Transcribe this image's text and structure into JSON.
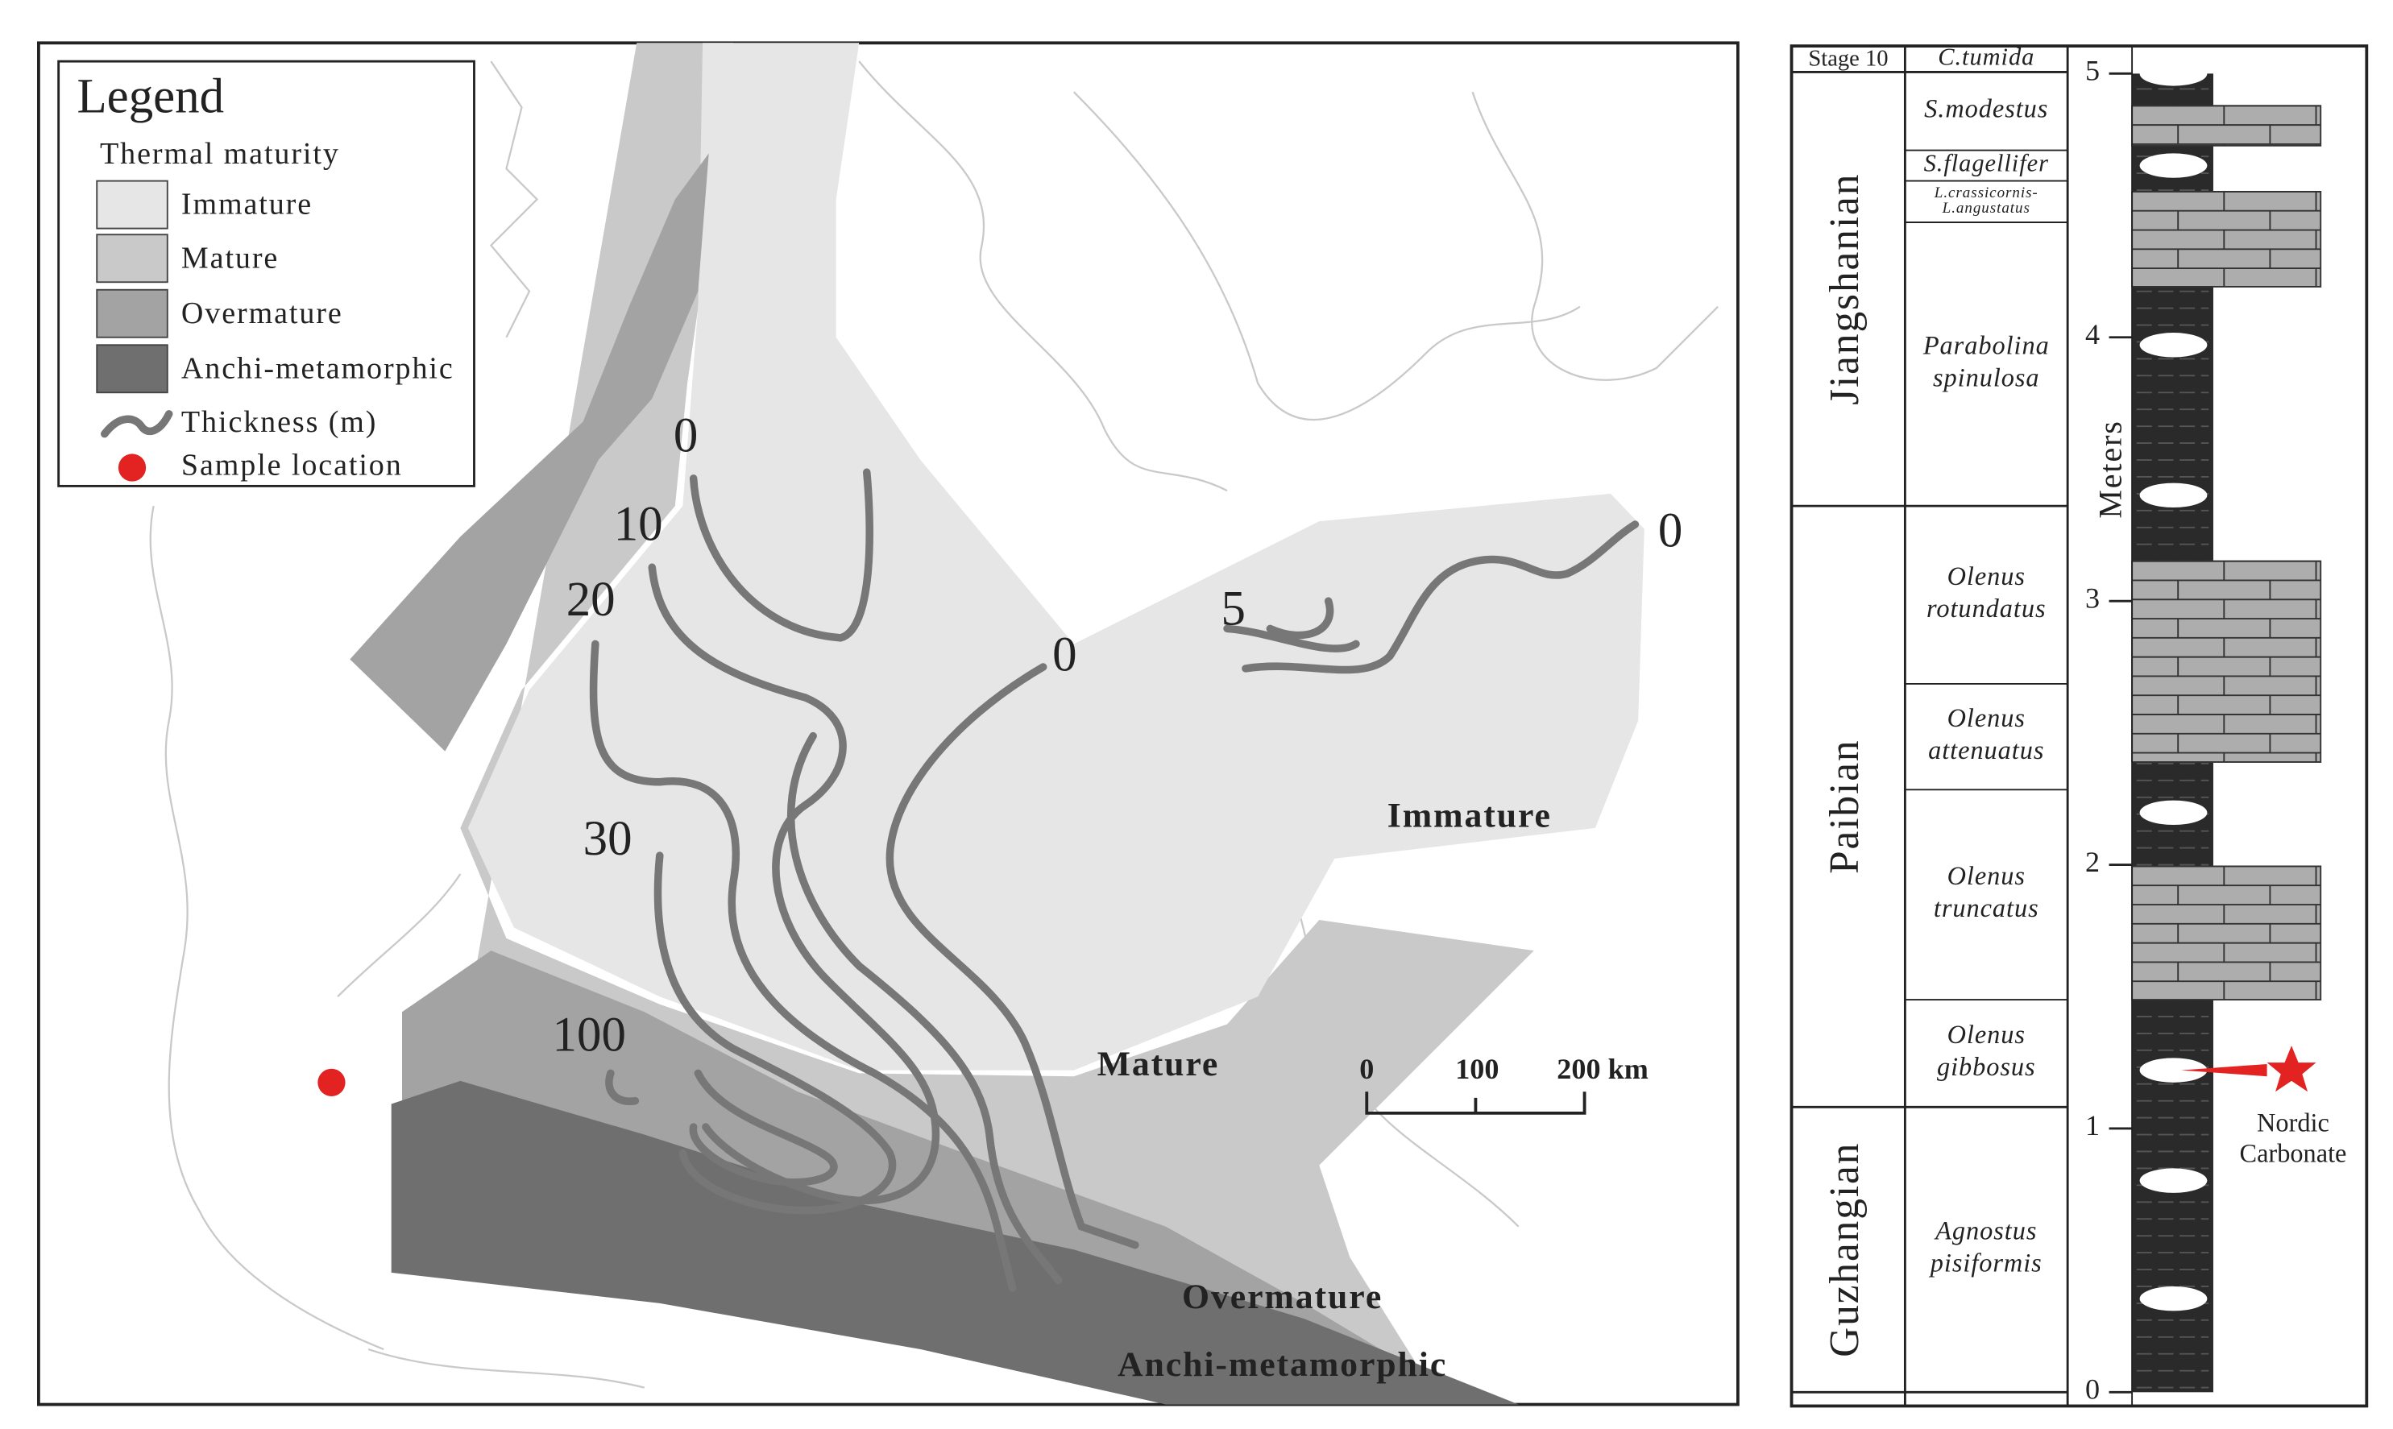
{
  "legend": {
    "title": "Legend",
    "subtitle": "Thermal maturity",
    "items": [
      "Immature",
      "Mature",
      "Overmature",
      "Anchi-metamorphic",
      "Thickness (m)",
      "Sample location"
    ]
  },
  "map": {
    "contour_labels": [
      "0",
      "10",
      "20",
      "0",
      "5",
      "0",
      "30",
      "100"
    ],
    "zone_labels": [
      "Immature",
      "Mature",
      "Overmature",
      "Anchi-metamorphic"
    ],
    "scale_bar": [
      "0",
      "100",
      "200 km"
    ]
  },
  "column": {
    "series": [
      "Stage 10",
      "Jiangshanian",
      "Paibian",
      "Guzhangian"
    ],
    "zones": [
      [
        "C.tumida"
      ],
      [
        "S.modestus"
      ],
      [
        "S.flagellifer"
      ],
      [
        "L.crassicornis-",
        "L.angustatus"
      ],
      [
        "Parabolina",
        "spinulosa"
      ],
      [
        "Olenus",
        "rotundatus"
      ],
      [
        "Olenus",
        "attenuatus"
      ],
      [
        "Olenus",
        "truncatus"
      ],
      [
        "Olenus",
        "gibbosus"
      ],
      [
        "Agnostus",
        "pisiformis"
      ]
    ],
    "axis_label": "Meters",
    "ticks": [
      0,
      1,
      2,
      3,
      4,
      5
    ],
    "annotation": [
      "Nordic",
      "Carbonate"
    ]
  }
}
